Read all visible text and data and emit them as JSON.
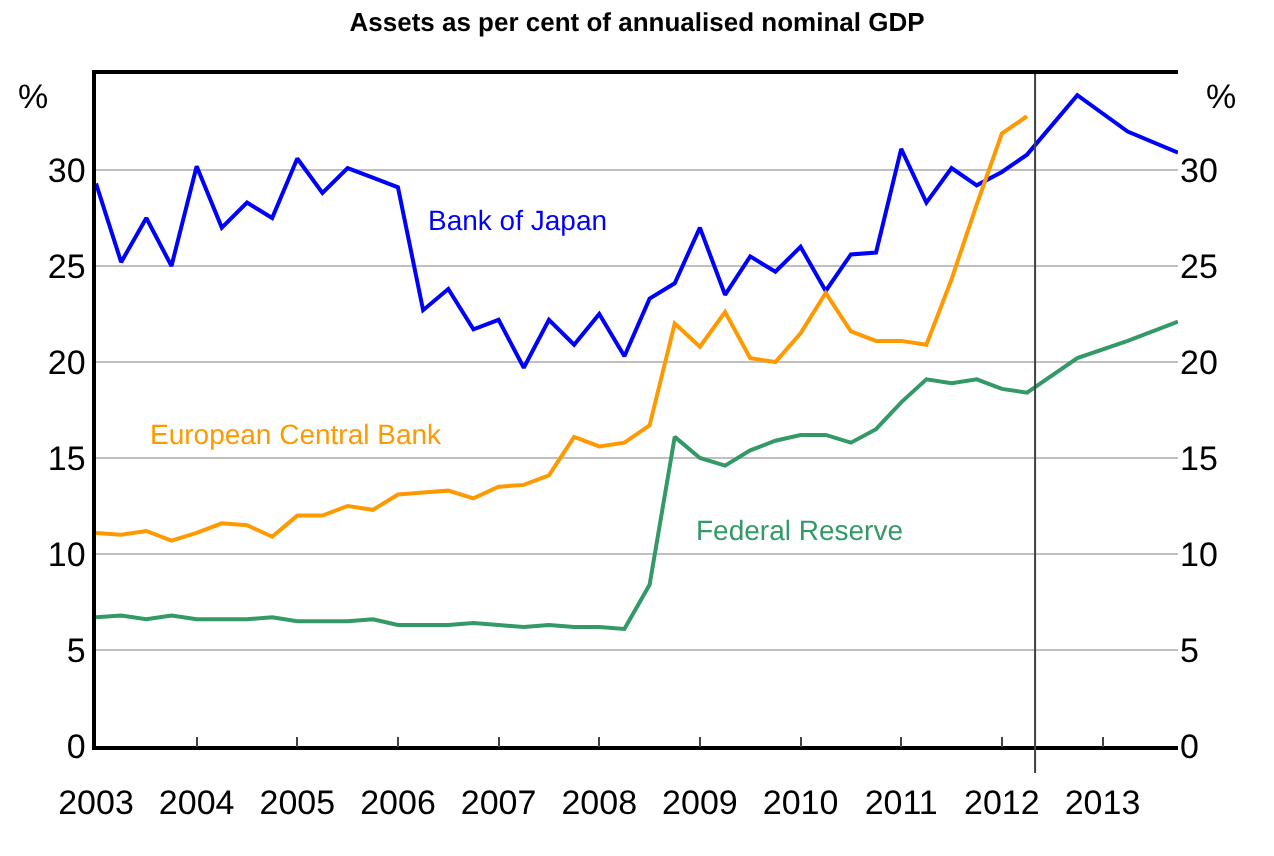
{
  "chart_data": {
    "type": "line",
    "title": "Assets as per cent of annualised nominal GDP",
    "ylabel": "%",
    "y2label": "%",
    "xlim": [
      2003,
      2013.75
    ],
    "xticks": [
      2003,
      2004,
      2005,
      2006,
      2007,
      2008,
      2009,
      2010,
      2011,
      2012,
      2013
    ],
    "ylim": [
      0,
      35
    ],
    "yticks": [
      0,
      5,
      10,
      15,
      20,
      25,
      30
    ],
    "y2lim": [
      0,
      35
    ],
    "y2ticks": [
      0,
      5,
      10,
      15,
      20,
      25,
      30
    ],
    "grid": "y",
    "legend": false,
    "marker": "none",
    "line_style": "solid",
    "ref_lines": [
      {
        "axis": "x",
        "value": 2012.33,
        "color": "#404040"
      }
    ],
    "series": [
      {
        "name": "Bank of Japan",
        "color": "#0000ff",
        "x": [
          2003,
          2003.25,
          2003.5,
          2003.75,
          2004,
          2004.25,
          2004.5,
          2004.75,
          2005,
          2005.25,
          2005.5,
          2005.75,
          2006,
          2006.25,
          2006.5,
          2006.75,
          2007,
          2007.25,
          2007.5,
          2007.75,
          2008,
          2008.25,
          2008.5,
          2008.75,
          2009,
          2009.25,
          2009.5,
          2009.75,
          2010,
          2010.25,
          2010.5,
          2010.75,
          2011,
          2011.25,
          2011.5,
          2011.75,
          2012,
          2012.25,
          2012.75,
          2013.25,
          2013.75
        ],
        "values": [
          29.3,
          25.2,
          27.5,
          25.0,
          30.2,
          27.0,
          28.3,
          27.5,
          30.6,
          28.8,
          30.1,
          29.6,
          29.1,
          22.7,
          23.8,
          21.7,
          22.2,
          19.7,
          22.2,
          20.9,
          22.5,
          20.3,
          23.3,
          24.1,
          27.0,
          23.5,
          25.5,
          24.7,
          26.0,
          23.7,
          25.6,
          25.7,
          31.1,
          28.3,
          30.1,
          29.2,
          29.9,
          30.8,
          33.9,
          32.0,
          30.9
        ]
      },
      {
        "name": "European Central Bank",
        "color": "#ff9900",
        "x": [
          2003,
          2003.25,
          2003.5,
          2003.75,
          2004,
          2004.25,
          2004.5,
          2004.75,
          2005,
          2005.25,
          2005.5,
          2005.75,
          2006,
          2006.25,
          2006.5,
          2006.75,
          2007,
          2007.25,
          2007.5,
          2007.75,
          2008,
          2008.25,
          2008.5,
          2008.75,
          2009,
          2009.25,
          2009.5,
          2009.75,
          2010,
          2010.25,
          2010.5,
          2010.75,
          2011,
          2011.25,
          2011.5,
          2011.75,
          2012,
          2012.25
        ],
        "values": [
          11.1,
          11.0,
          11.2,
          10.7,
          11.1,
          11.6,
          11.5,
          10.9,
          12.0,
          12.0,
          12.5,
          12.3,
          13.1,
          13.2,
          13.3,
          12.9,
          13.5,
          13.6,
          14.1,
          16.1,
          15.6,
          15.8,
          16.7,
          22.0,
          20.8,
          22.6,
          20.2,
          20.0,
          21.5,
          23.6,
          21.6,
          21.1,
          21.1,
          20.9,
          24.3,
          28.2,
          31.9,
          32.8
        ]
      },
      {
        "name": "Federal Reserve",
        "color": "#339966",
        "x": [
          2003,
          2003.25,
          2003.5,
          2003.75,
          2004,
          2004.25,
          2004.5,
          2004.75,
          2005,
          2005.25,
          2005.5,
          2005.75,
          2006,
          2006.25,
          2006.5,
          2006.75,
          2007,
          2007.25,
          2007.5,
          2007.75,
          2008,
          2008.25,
          2008.5,
          2008.75,
          2009,
          2009.25,
          2009.5,
          2009.75,
          2010,
          2010.25,
          2010.5,
          2010.75,
          2011,
          2011.25,
          2011.5,
          2011.75,
          2012,
          2012.25,
          2012.75,
          2013.25,
          2013.75
        ],
        "values": [
          6.7,
          6.8,
          6.6,
          6.8,
          6.6,
          6.6,
          6.6,
          6.7,
          6.5,
          6.5,
          6.5,
          6.6,
          6.3,
          6.3,
          6.3,
          6.4,
          6.3,
          6.2,
          6.3,
          6.2,
          6.2,
          6.1,
          8.4,
          16.1,
          15.0,
          14.6,
          15.4,
          15.9,
          16.2,
          16.2,
          15.8,
          16.5,
          17.9,
          19.1,
          18.9,
          19.1,
          18.6,
          18.4,
          20.2,
          21.1,
          22.1
        ]
      }
    ]
  }
}
